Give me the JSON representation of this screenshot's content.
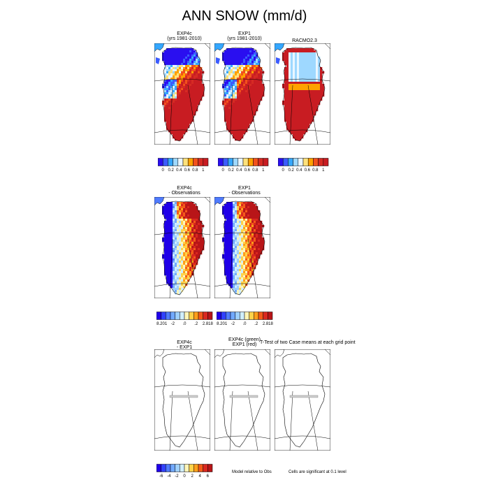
{
  "title": "ANN SNOW (mm/d)",
  "rows": [
    {
      "panels": [
        {
          "title_lines": [
            "EXP4c",
            "(yrs 1981-2010)"
          ],
          "type": "model"
        },
        {
          "title_lines": [
            "EXP1",
            "(yrs 1981-2010)"
          ],
          "type": "model"
        },
        {
          "title_lines": [
            "RACMO2.3"
          ],
          "type": "obs"
        }
      ],
      "colorbars": [
        {
          "ticks": [
            "0",
            "0.2",
            "0.4",
            "0.6",
            "0.8",
            "1"
          ]
        },
        {
          "ticks": [
            "0",
            "0.2",
            "0.4",
            "0.6",
            "0.8",
            "1"
          ]
        },
        {
          "ticks": [
            "0",
            "0.2",
            "0.4",
            "0.6",
            "0.8",
            "1"
          ]
        }
      ]
    },
    {
      "panels": [
        {
          "title_lines": [
            "EXP4c",
            "- Observations"
          ],
          "type": "diff"
        },
        {
          "title_lines": [
            "EXP1",
            "- Observations"
          ],
          "type": "diff"
        }
      ],
      "colorbars": [
        {
          "ticks": [
            "-8.201",
            "-2",
            ".0",
            ".2",
            "2.818"
          ]
        },
        {
          "ticks": [
            "-8.201",
            "-2",
            ".0",
            ".2",
            "2.818"
          ]
        }
      ]
    },
    {
      "panels": [
        {
          "title_lines": [
            "EXP4c",
            "- EXP1"
          ],
          "type": "blank"
        },
        {
          "title_lines": [
            "EXP4c (green)",
            "EXP1 (red)"
          ],
          "type": "blank"
        },
        {
          "title_lines": [
            ""
          ],
          "type": "blank"
        }
      ],
      "colorbars": [
        {
          "ticks": [
            "-6",
            "-4",
            "-2",
            "0",
            "2",
            "4",
            "6"
          ]
        }
      ],
      "notes": {
        "ttest": "T-Test of two Case means at each grid point",
        "model_rel": "Model relative to Obs",
        "significant": "Cells are significant at 0.1 level"
      }
    }
  ],
  "chart_data": {
    "type": "heatmap",
    "title": "ANN SNOW (mm/d)",
    "variable": "SNOW",
    "units": "mm/d",
    "season": "ANN",
    "region": "Greenland",
    "row1_scale": [
      0,
      0.2,
      0.4,
      0.6,
      0.8,
      1
    ],
    "row2_scale": [
      -8.201,
      -2,
      0,
      0.2,
      2.818
    ],
    "row3_scale": [
      -6,
      -4,
      -2,
      0,
      2,
      4,
      6
    ],
    "colors_abs": [
      "#2a0ff0",
      "#3b5bff",
      "#35a7ff",
      "#9ed8ff",
      "#eaf6ff",
      "#ffe17a",
      "#ffa200",
      "#f2511b",
      "#d62b23",
      "#c81c22"
    ],
    "colors_diff": [
      "#2000e8",
      "#3040ff",
      "#4f7bff",
      "#70a8ff",
      "#9fd0ff",
      "#cfeeff",
      "#fff5b8",
      "#ffd24a",
      "#ff9e1a",
      "#f45a1a",
      "#d9281f",
      "#b81518"
    ]
  }
}
